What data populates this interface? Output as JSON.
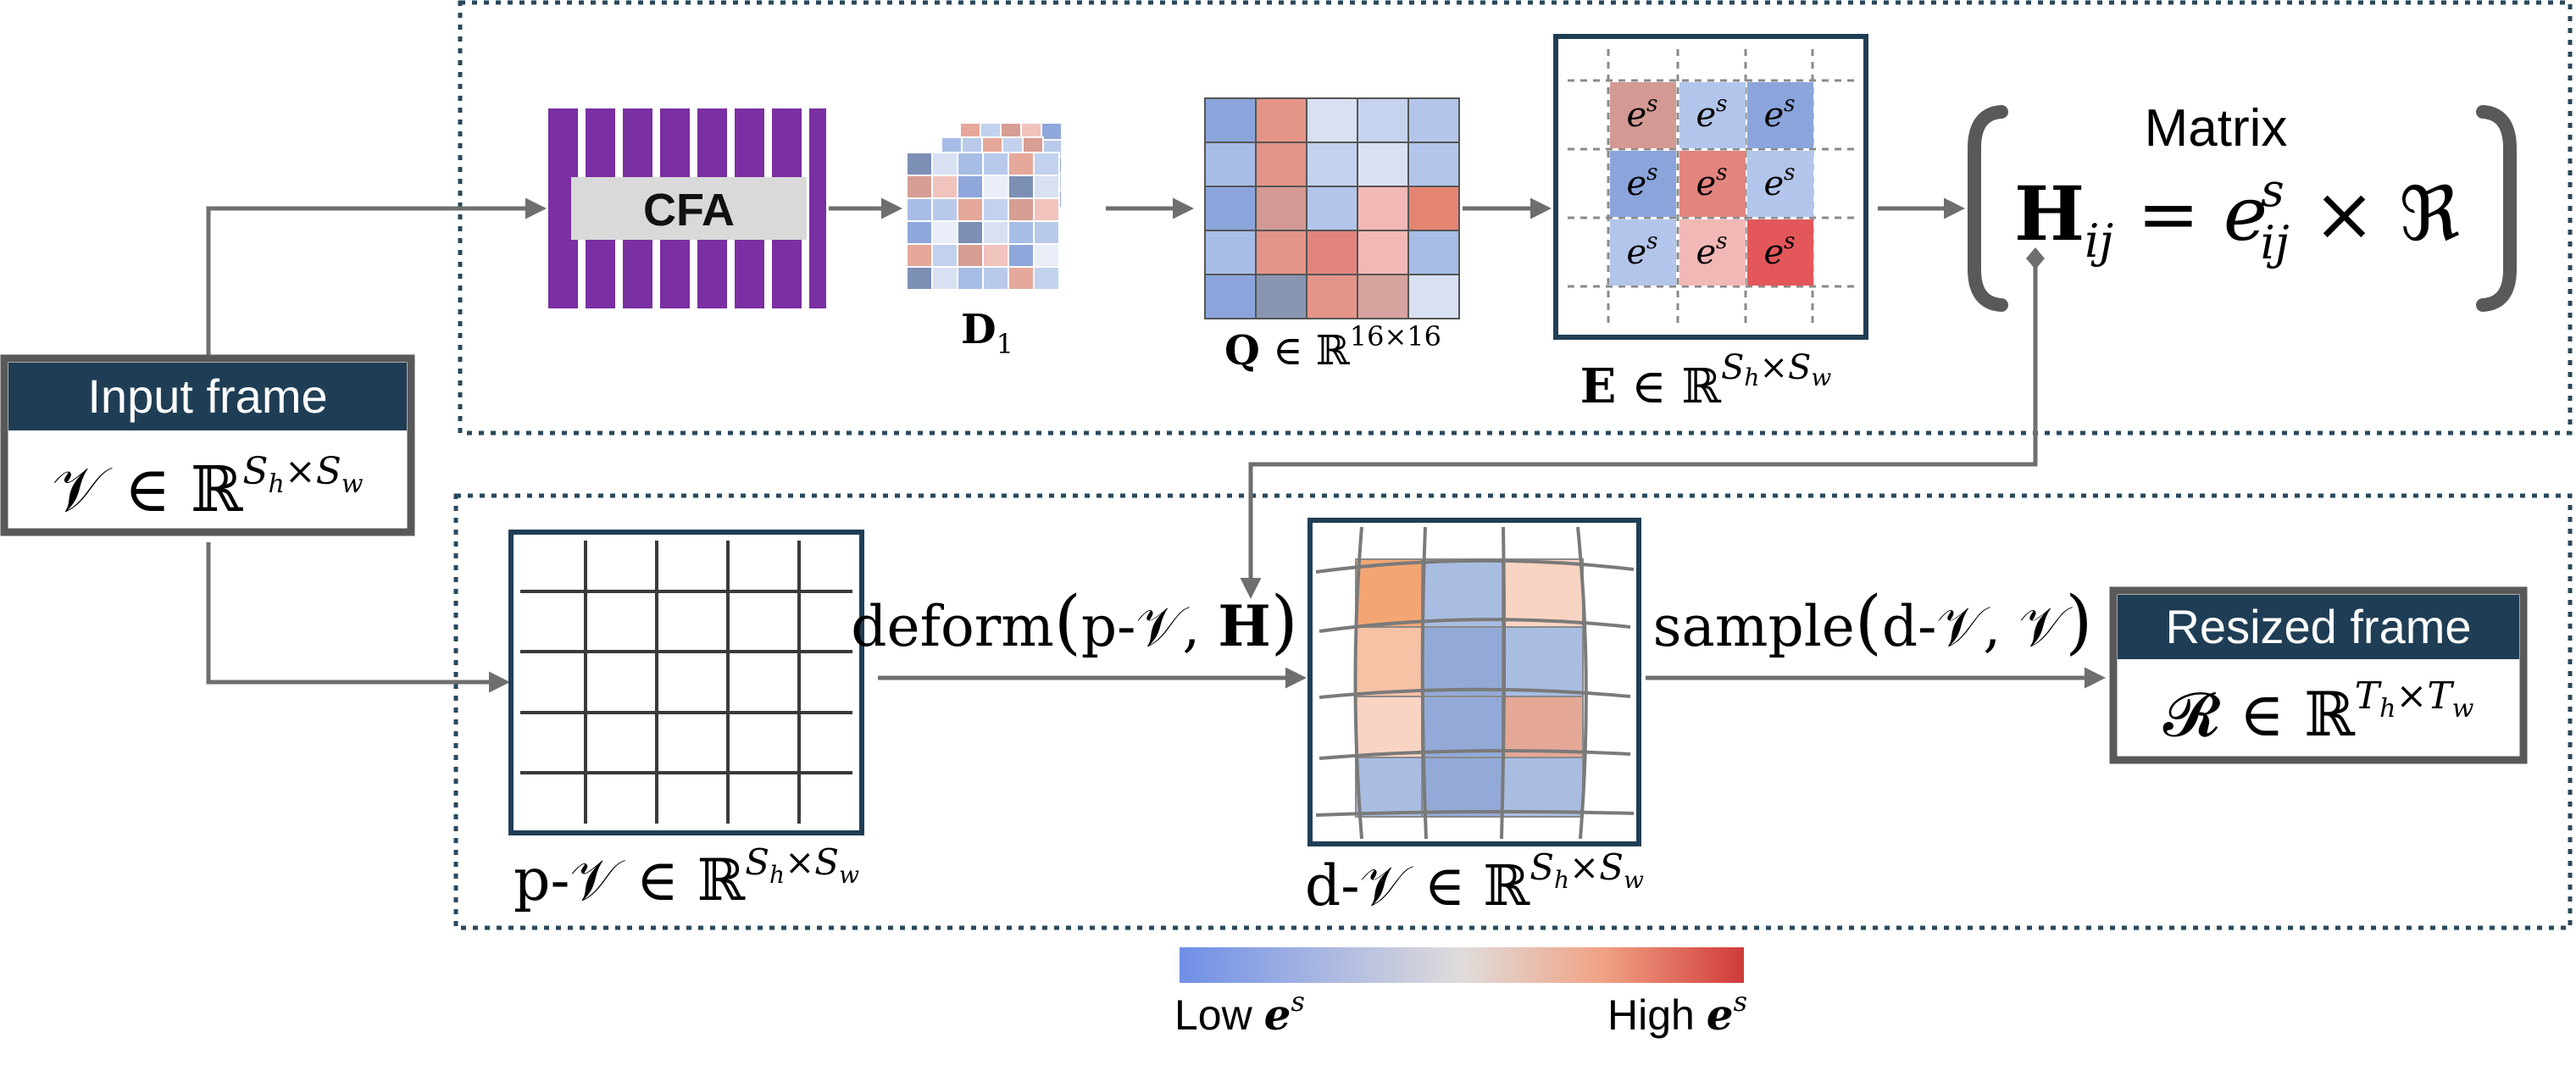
{
  "colors": {
    "frame_dark": "#1f3e55",
    "dotted": "#28485c",
    "arrow": "#6e6e6e",
    "cfa_purple": "#7a2fa2",
    "low": "#6f8fe6",
    "mid": "#d9dde6",
    "high": "#d03a3a"
  },
  "input_frame": {
    "title": "Input frame",
    "V": "𝒱",
    "in": "∈",
    "R": "ℝ",
    "sup_base": "S",
    "sub_h": "h",
    "sup_x": "×",
    "sub_w": "w"
  },
  "cfa": {
    "label": "CFA"
  },
  "d1": {
    "label": "D",
    "sub": "1"
  },
  "q": {
    "label": "Q",
    "in": "∈",
    "R": "ℝ",
    "sup": "16×16"
  },
  "e": {
    "label": "E",
    "in": "∈",
    "R": "ℝ",
    "sup_base": "S",
    "sub_h": "h",
    "sup_x": "×",
    "sub_w": "w",
    "cell_text": "e",
    "cell_sup": "s"
  },
  "matrix": {
    "title": "Matrix",
    "H": "H",
    "H_sub": "ij",
    "eq": "=",
    "e": "e",
    "e_sup": "s",
    "e_sub": "ij",
    "times": "×",
    "re": "ℜ"
  },
  "p_grid": {
    "label_prefix": "p-",
    "V": "𝒱",
    "in": "∈",
    "R": "ℝ",
    "sup_base": "S",
    "sub_h": "h",
    "sup_x": "×",
    "sub_w": "w"
  },
  "deform": {
    "fn": "deform",
    "lparen": "(",
    "arg1": "p-𝒱",
    "comma": ",",
    "arg2": "H",
    "rparen": ")"
  },
  "d_grid": {
    "label_prefix": "d-",
    "V": "𝒱",
    "in": "∈",
    "R": "ℝ",
    "sup_base": "S",
    "sub_h": "h",
    "sup_x": "×",
    "sub_w": "w"
  },
  "sample": {
    "fn": "sample",
    "lparen": "(",
    "arg1": "d-𝒱",
    "comma": ",",
    "arg2": "𝒱",
    "rparen": ")"
  },
  "resized_frame": {
    "title": "Resized frame",
    "R": "𝓡",
    "in": "∈",
    "Rr": "ℝ",
    "sup_base": "T",
    "sub_h": "h",
    "sup_x": "×",
    "sub_w": "w"
  },
  "colorbar": {
    "low": "Low",
    "high": "High",
    "e": "e",
    "s": "s"
  }
}
